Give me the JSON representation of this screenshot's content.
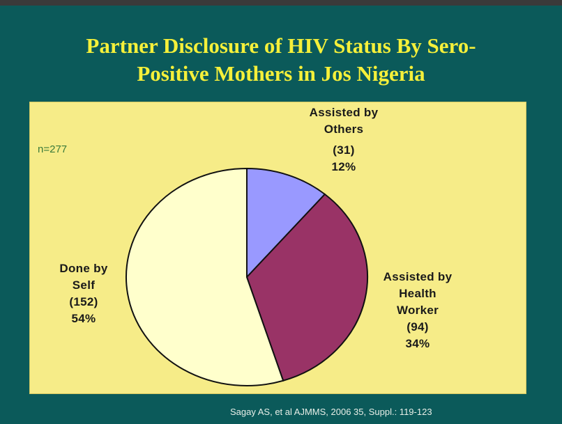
{
  "slide": {
    "title_line1": "Partner Disclosure of HIV Status By Sero-",
    "title_line2": "Positive Mothers in Jos Nigeria",
    "n_label": "n=277",
    "source": "Sagay AS, et al AJMMS, 2006 35, Suppl.: 119-123"
  },
  "chart_data": {
    "type": "pie",
    "title": "Partner Disclosure of HIV Status By Sero-Positive Mothers in Jos Nigeria",
    "n": 277,
    "slices": [
      {
        "label_lines": [
          "Assisted by",
          "Others"
        ],
        "count_text": "(31)",
        "pct_text": "12%",
        "count": 31,
        "percent": 12,
        "color": "#9999ff"
      },
      {
        "label_lines": [
          "Assisted by",
          "Health",
          "Worker"
        ],
        "count_text": "(94)",
        "pct_text": "34%",
        "count": 94,
        "percent": 34,
        "color": "#993366"
      },
      {
        "label_lines": [
          "Done by",
          "Self"
        ],
        "count_text": "(152)",
        "pct_text": "54%",
        "count": 152,
        "percent": 54,
        "color": "#ffffcc"
      }
    ]
  }
}
